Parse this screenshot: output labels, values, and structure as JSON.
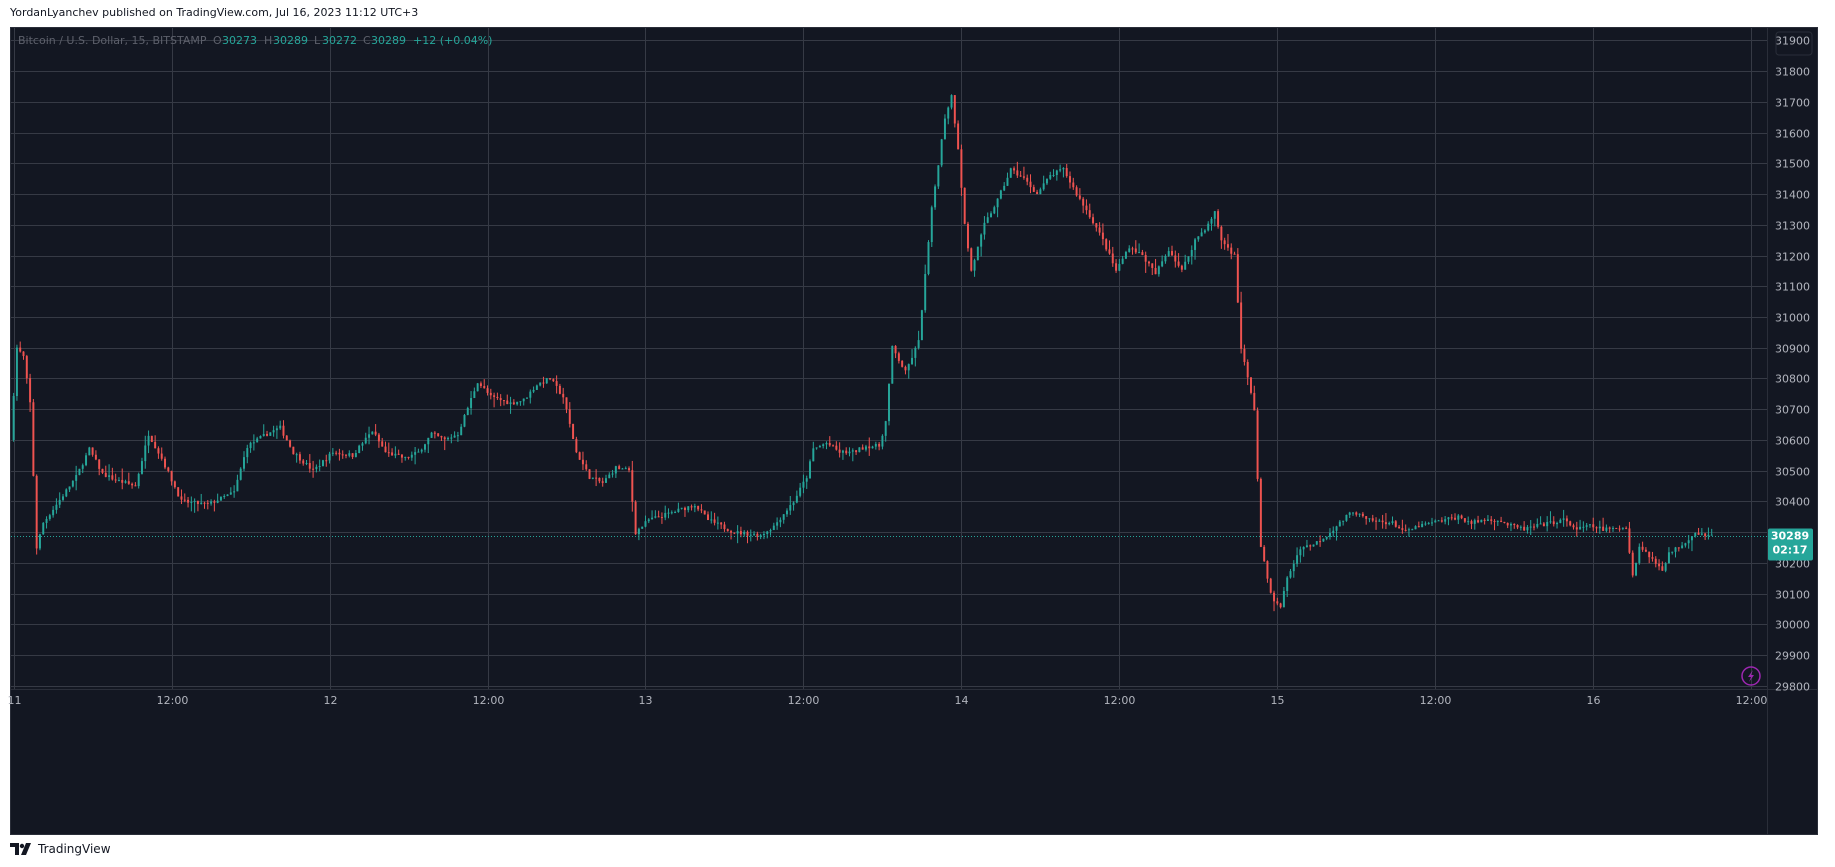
{
  "header": {
    "published_line": "YordanLyanchev published on TradingView.com, Jul 16, 2023 11:12 UTC+3"
  },
  "legend": {
    "symbol_text": "Bitcoin / U.S. Dollar, 15, BITSTAMP",
    "o_label": "O",
    "o_value": "30273",
    "h_label": "H",
    "h_value": "30289",
    "l_label": "L",
    "l_value": "30272",
    "c_label": "C",
    "c_value": "30289",
    "change": "+12 (+0.04%)"
  },
  "price_tag": {
    "price": "30289",
    "countdown": "02:17"
  },
  "footer": {
    "brand": "TradingView"
  },
  "colors": {
    "background": "#131722",
    "grid": "#363a45",
    "up": "#26a69a",
    "down": "#ef5350",
    "axis_text": "#b2b5be",
    "tag": "#26a69a",
    "alert": "#9c27b0"
  },
  "icons": {
    "footer_logo": "tradingview-logo-icon",
    "alert": "lightning-icon"
  },
  "chart_data": {
    "type": "candlestick",
    "symbol": "Bitcoin / U.S. Dollar",
    "interval": "15",
    "exchange": "BITSTAMP",
    "yaxis_ticks": [
      29800,
      29900,
      30000,
      30100,
      30200,
      30300,
      30400,
      30500,
      30600,
      30700,
      30800,
      30900,
      31000,
      31100,
      31200,
      31300,
      31400,
      31500,
      31600,
      31700,
      31800,
      31900
    ],
    "ylim": [
      29790,
      31940
    ],
    "xaxis_ticks": [
      {
        "label": "11",
        "hour": 0
      },
      {
        "label": "12:00",
        "hour": 12
      },
      {
        "label": "12",
        "hour": 24
      },
      {
        "label": "12:00",
        "hour": 36
      },
      {
        "label": "13",
        "hour": 48
      },
      {
        "label": "12:00",
        "hour": 60
      },
      {
        "label": "14",
        "hour": 72
      },
      {
        "label": "12:00",
        "hour": 84
      },
      {
        "label": "15",
        "hour": 96
      },
      {
        "label": "12:00",
        "hour": 108
      },
      {
        "label": "16",
        "hour": 120
      },
      {
        "label": "12:00",
        "hour": 132
      }
    ],
    "xlim_hours": [
      -0.2,
      133.2
    ],
    "last_price": 30289,
    "price_path": [
      [
        0,
        30600
      ],
      [
        0.5,
        30900
      ],
      [
        1,
        30870
      ],
      [
        1.5,
        30720
      ],
      [
        2,
        30250
      ],
      [
        2.5,
        30330
      ],
      [
        3.5,
        30390
      ],
      [
        5,
        30480
      ],
      [
        6,
        30570
      ],
      [
        7,
        30490
      ],
      [
        8,
        30470
      ],
      [
        9.5,
        30450
      ],
      [
        10.5,
        30620
      ],
      [
        11.5,
        30540
      ],
      [
        13,
        30400
      ],
      [
        15,
        30390
      ],
      [
        16,
        30410
      ],
      [
        17,
        30430
      ],
      [
        18,
        30580
      ],
      [
        19.5,
        30620
      ],
      [
        20.5,
        30640
      ],
      [
        21.5,
        30560
      ],
      [
        23,
        30500
      ],
      [
        24.5,
        30560
      ],
      [
        26,
        30550
      ],
      [
        27.5,
        30630
      ],
      [
        28.5,
        30560
      ],
      [
        30,
        30540
      ],
      [
        31,
        30560
      ],
      [
        32,
        30620
      ],
      [
        33,
        30600
      ],
      [
        34,
        30620
      ],
      [
        35.5,
        30790
      ],
      [
        36.5,
        30740
      ],
      [
        38,
        30720
      ],
      [
        39,
        30730
      ],
      [
        40,
        30780
      ],
      [
        41,
        30800
      ],
      [
        42,
        30740
      ],
      [
        43,
        30560
      ],
      [
        44,
        30480
      ],
      [
        45,
        30460
      ],
      [
        46,
        30510
      ],
      [
        47,
        30500
      ],
      [
        47.5,
        30300
      ],
      [
        48.5,
        30340
      ],
      [
        50,
        30360
      ],
      [
        52,
        30390
      ],
      [
        53,
        30340
      ],
      [
        55,
        30300
      ],
      [
        57,
        30290
      ],
      [
        58,
        30320
      ],
      [
        59.5,
        30400
      ],
      [
        60.5,
        30480
      ],
      [
        61,
        30570
      ],
      [
        62,
        30590
      ],
      [
        63,
        30560
      ],
      [
        64,
        30560
      ],
      [
        65,
        30580
      ],
      [
        66,
        30580
      ],
      [
        66.5,
        30660
      ],
      [
        67,
        30900
      ],
      [
        68,
        30820
      ],
      [
        69,
        30920
      ],
      [
        70,
        31350
      ],
      [
        71,
        31650
      ],
      [
        71.5,
        31720
      ],
      [
        72,
        31550
      ],
      [
        72.5,
        31300
      ],
      [
        73,
        31150
      ],
      [
        74,
        31300
      ],
      [
        75,
        31380
      ],
      [
        76,
        31480
      ],
      [
        77,
        31450
      ],
      [
        78,
        31400
      ],
      [
        79,
        31460
      ],
      [
        80,
        31480
      ],
      [
        81,
        31400
      ],
      [
        82,
        31330
      ],
      [
        83,
        31250
      ],
      [
        84,
        31150
      ],
      [
        85,
        31230
      ],
      [
        86,
        31200
      ],
      [
        87,
        31140
      ],
      [
        88,
        31220
      ],
      [
        89,
        31150
      ],
      [
        90,
        31250
      ],
      [
        91,
        31300
      ],
      [
        91.5,
        31340
      ],
      [
        92,
        31250
      ],
      [
        93,
        31200
      ],
      [
        93.5,
        30900
      ],
      [
        94.5,
        30700
      ],
      [
        95,
        30250
      ],
      [
        95.5,
        30150
      ],
      [
        96,
        30070
      ],
      [
        96.5,
        30060
      ],
      [
        97,
        30150
      ],
      [
        98,
        30250
      ],
      [
        99,
        30260
      ],
      [
        100,
        30290
      ],
      [
        101,
        30330
      ],
      [
        102,
        30370
      ],
      [
        103,
        30340
      ],
      [
        105,
        30330
      ],
      [
        106,
        30300
      ],
      [
        107,
        30320
      ],
      [
        108,
        30330
      ],
      [
        110,
        30350
      ],
      [
        111,
        30330
      ],
      [
        112,
        30340
      ],
      [
        113,
        30340
      ],
      [
        114,
        30320
      ],
      [
        115,
        30310
      ],
      [
        116,
        30320
      ],
      [
        117,
        30330
      ],
      [
        118,
        30340
      ],
      [
        119,
        30310
      ],
      [
        120,
        30320
      ],
      [
        121,
        30310
      ],
      [
        122,
        30310
      ],
      [
        122.8,
        30320
      ],
      [
        123.2,
        30150
      ],
      [
        123.8,
        30260
      ],
      [
        124.5,
        30220
      ],
      [
        125.5,
        30180
      ],
      [
        126,
        30230
      ],
      [
        127,
        30260
      ],
      [
        128,
        30300
      ],
      [
        129,
        30290
      ]
    ]
  }
}
